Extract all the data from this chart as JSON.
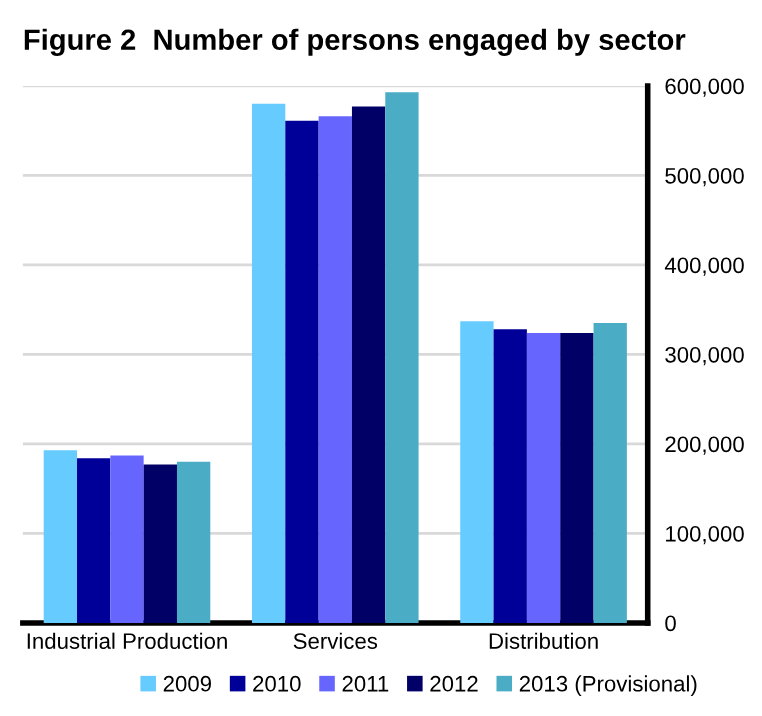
{
  "chart_data": {
    "type": "bar",
    "title": "Figure 2  Number of persons engaged by sector",
    "categories": [
      "Industrial Production",
      "Services",
      "Distribution"
    ],
    "series": [
      {
        "name": "2009",
        "color": "#66ccff",
        "values": [
          193000,
          580000,
          337000
        ]
      },
      {
        "name": "2010",
        "color": "#000099",
        "values": [
          184000,
          561000,
          328000
        ]
      },
      {
        "name": "2011",
        "color": "#6666ff",
        "values": [
          187000,
          566000,
          324000
        ]
      },
      {
        "name": "2012",
        "color": "#000066",
        "values": [
          177000,
          577000,
          324000
        ]
      },
      {
        "name": "2013 (Provisional)",
        "color": "#4bacc6",
        "values": [
          180000,
          593000,
          335000
        ]
      }
    ],
    "ylim": [
      0,
      600000
    ],
    "yticks": [
      {
        "value": 0,
        "label": "0"
      },
      {
        "value": 100000,
        "label": "100,000"
      },
      {
        "value": 200000,
        "label": "200,000"
      },
      {
        "value": 300000,
        "label": "300,000"
      },
      {
        "value": 400000,
        "label": "400,000"
      },
      {
        "value": 500000,
        "label": "500,000"
      },
      {
        "value": 600000,
        "label": "600,000"
      }
    ],
    "grid": "y",
    "legend": "bottom"
  }
}
